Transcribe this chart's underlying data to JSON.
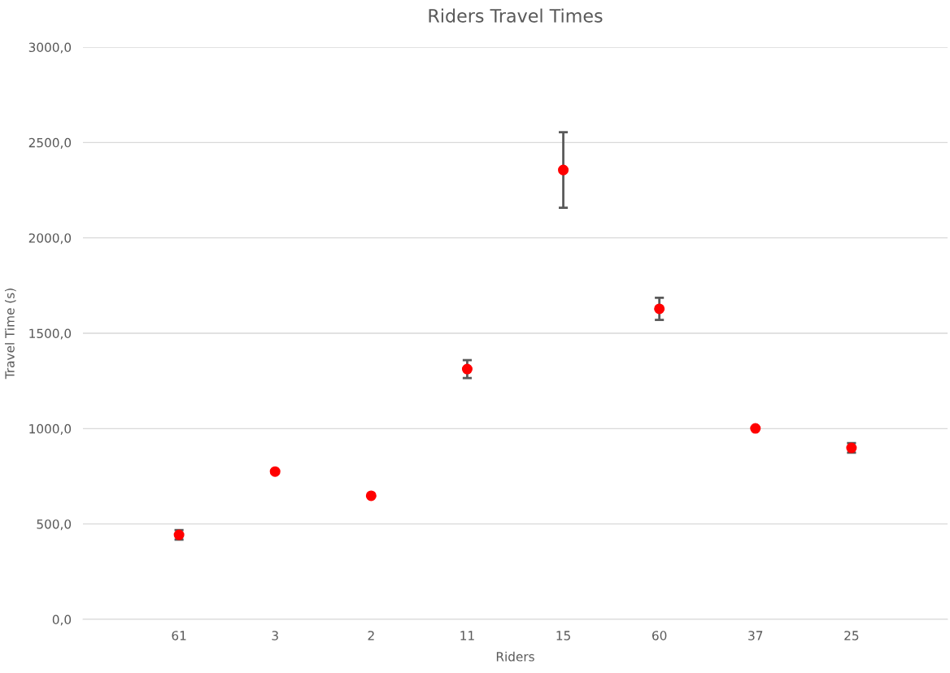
{
  "chart_data": {
    "type": "scatter",
    "title": "Riders Travel Times",
    "xlabel": "Riders",
    "ylabel": "Travel Time (s)",
    "categories": [
      "61",
      "3",
      "2",
      "11",
      "15",
      "60",
      "37",
      "25"
    ],
    "series": [
      {
        "color": "#ff0000",
        "values": [
          443,
          775,
          648,
          1312,
          2356,
          1628,
          1001,
          899
        ],
        "errors": [
          25,
          null,
          null,
          47,
          198,
          58,
          null,
          25
        ]
      }
    ],
    "ylim": [
      0,
      3000
    ],
    "yticks": [
      {
        "value": 0,
        "label": "0,0"
      },
      {
        "value": 500,
        "label": "500,0"
      },
      {
        "value": 1000,
        "label": "1000,0"
      },
      {
        "value": 1500,
        "label": "1500,0"
      },
      {
        "value": 2000,
        "label": "2000,0"
      },
      {
        "value": 2500,
        "label": "2500,0"
      },
      {
        "value": 3000,
        "label": "3000,0"
      }
    ],
    "grid": "y",
    "marker": "circle"
  }
}
